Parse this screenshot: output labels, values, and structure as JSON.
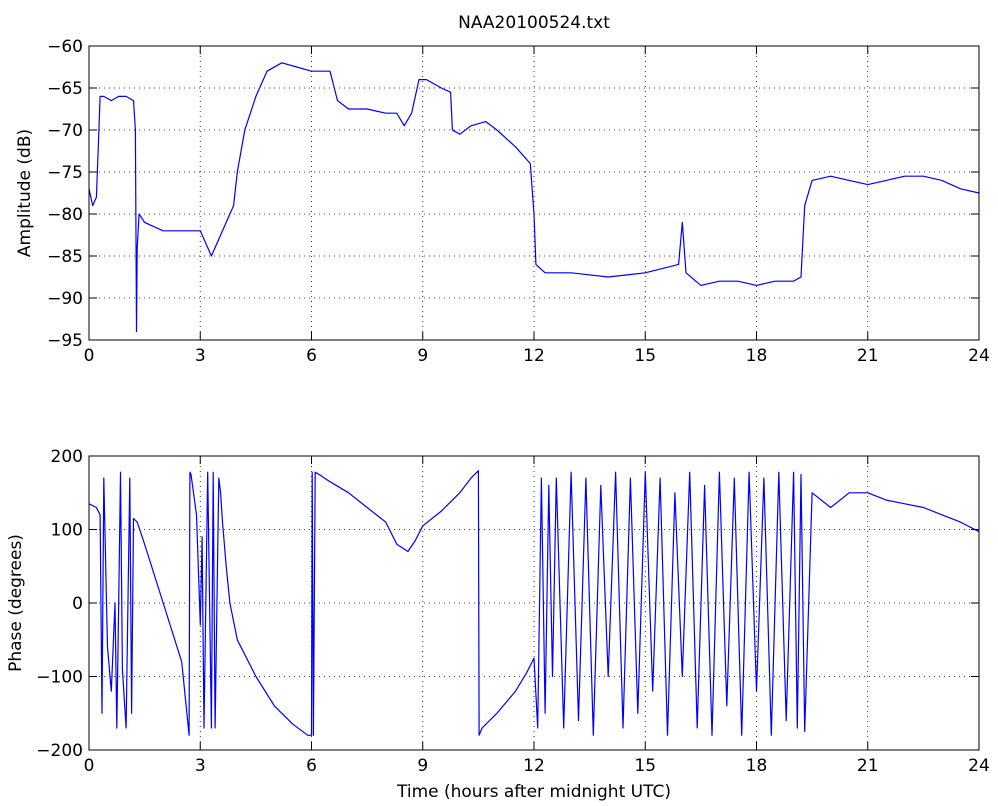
{
  "chart_data": [
    {
      "type": "line",
      "title": "NAA20100524.txt",
      "xlabel": "",
      "ylabel": "Amplitude (dB)",
      "xlim": [
        0,
        24
      ],
      "ylim": [
        -95,
        -60
      ],
      "xticks": [
        0,
        3,
        6,
        9,
        12,
        15,
        18,
        21,
        24
      ],
      "yticks": [
        -95,
        -90,
        -85,
        -80,
        -75,
        -70,
        -65,
        -60
      ],
      "grid": true,
      "line_color": "#0000ff",
      "series": [
        {
          "x": [
            0.0,
            0.1,
            0.2,
            0.25,
            0.3,
            0.4,
            0.6,
            0.8,
            1.0,
            1.2,
            1.25,
            1.28,
            1.3,
            1.35,
            1.5,
            2.0,
            2.5,
            3.0,
            3.3,
            3.6,
            3.9,
            4.0,
            4.2,
            4.5,
            4.8,
            5.2,
            5.6,
            6.0,
            6.5,
            6.7,
            7.0,
            7.5,
            8.0,
            8.3,
            8.5,
            8.7,
            8.9,
            9.1,
            9.5,
            9.75,
            9.8,
            10.0,
            10.3,
            10.7,
            11.0,
            11.5,
            11.9,
            12.0,
            12.05,
            12.3,
            13.0,
            14.0,
            15.0,
            15.9,
            16.0,
            16.1,
            16.5,
            17.0,
            17.5,
            18.0,
            18.5,
            19.0,
            19.2,
            19.3,
            19.5,
            20.0,
            20.5,
            21.0,
            21.5,
            22.0,
            22.5,
            23.0,
            23.5,
            24.0
          ],
          "y": [
            -77,
            -79,
            -78,
            -72,
            -66,
            -66,
            -66.5,
            -66,
            -66,
            -66.5,
            -70,
            -94,
            -84,
            -80,
            -81,
            -82,
            -82,
            -82,
            -85,
            -82,
            -79,
            -75,
            -70,
            -66,
            -63,
            -62,
            -62.5,
            -63,
            -63,
            -66.5,
            -67.5,
            -67.5,
            -68,
            -68,
            -69.5,
            -68,
            -64,
            -64,
            -65,
            -65.5,
            -70,
            -70.5,
            -69.5,
            -69,
            -70,
            -72,
            -74,
            -80,
            -86,
            -87,
            -87,
            -87.5,
            -87,
            -86,
            -81,
            -87,
            -88.5,
            -88,
            -88,
            -88.5,
            -88,
            -88,
            -87.5,
            -79,
            -76,
            -75.5,
            -76,
            -76.5,
            -76,
            -75.5,
            -75.5,
            -76,
            -77,
            -77.5
          ]
        }
      ]
    },
    {
      "type": "line",
      "title": "",
      "xlabel": "Time (hours after midnight UTC)",
      "ylabel": "Phase (degrees)",
      "xlim": [
        0,
        24
      ],
      "ylim": [
        -200,
        200
      ],
      "xticks": [
        0,
        3,
        6,
        9,
        12,
        15,
        18,
        21,
        24
      ],
      "yticks": [
        -200,
        -100,
        0,
        100,
        200
      ],
      "grid": true,
      "line_color": "#0000ff",
      "series": [
        {
          "x": [
            0.0,
            0.2,
            0.3,
            0.35,
            0.4,
            0.5,
            0.6,
            0.7,
            0.75,
            0.8,
            0.85,
            0.9,
            1.0,
            1.1,
            1.15,
            1.2,
            1.3,
            1.5,
            2.0,
            2.5,
            2.7,
            2.72,
            2.75,
            2.9,
            3.0,
            3.05,
            3.1,
            3.2,
            3.3,
            3.35,
            3.4,
            3.5,
            3.55,
            3.6,
            3.7,
            3.8,
            4.0,
            4.5,
            5.0,
            5.5,
            5.9,
            6.0,
            6.02,
            6.05,
            6.1,
            6.2,
            6.5,
            7.0,
            7.5,
            8.0,
            8.3,
            8.6,
            8.8,
            9.0,
            9.5,
            10.0,
            10.3,
            10.5,
            10.52,
            10.6,
            11.0,
            11.5,
            11.8,
            12.0,
            12.1,
            12.2,
            12.3,
            12.4,
            12.5,
            12.6,
            12.8,
            13.0,
            13.2,
            13.4,
            13.6,
            13.8,
            14.0,
            14.2,
            14.4,
            14.6,
            14.8,
            15.0,
            15.2,
            15.4,
            15.6,
            15.8,
            16.0,
            16.2,
            16.4,
            16.6,
            16.8,
            17.0,
            17.2,
            17.4,
            17.6,
            17.8,
            18.0,
            18.2,
            18.4,
            18.6,
            18.8,
            19.0,
            19.1,
            19.2,
            19.3,
            19.5,
            20.0,
            20.5,
            21.0,
            21.5,
            22.0,
            22.5,
            23.0,
            23.5,
            24.0
          ],
          "y": [
            135,
            130,
            120,
            -150,
            170,
            -60,
            -120,
            0,
            -170,
            0,
            178,
            -90,
            -170,
            170,
            -150,
            115,
            110,
            80,
            0,
            -80,
            -180,
            178,
            175,
            120,
            -30,
            90,
            -170,
            178,
            -170,
            178,
            -170,
            170,
            150,
            110,
            50,
            0,
            -50,
            -100,
            -140,
            -165,
            -180,
            -180,
            178,
            -180,
            178,
            175,
            165,
            150,
            130,
            110,
            80,
            70,
            85,
            105,
            125,
            150,
            170,
            180,
            -180,
            -170,
            -150,
            -120,
            -95,
            -75,
            -170,
            170,
            -150,
            160,
            -100,
            170,
            -170,
            178,
            -160,
            170,
            -180,
            160,
            -100,
            178,
            -170,
            170,
            -150,
            178,
            -120,
            170,
            -180,
            150,
            -100,
            178,
            -170,
            160,
            -180,
            178,
            -140,
            170,
            -180,
            178,
            -120,
            170,
            -180,
            178,
            -160,
            178,
            -170,
            175,
            -175,
            150,
            130,
            150,
            150,
            140,
            135,
            130,
            120,
            110,
            97
          ]
        }
      ]
    }
  ]
}
